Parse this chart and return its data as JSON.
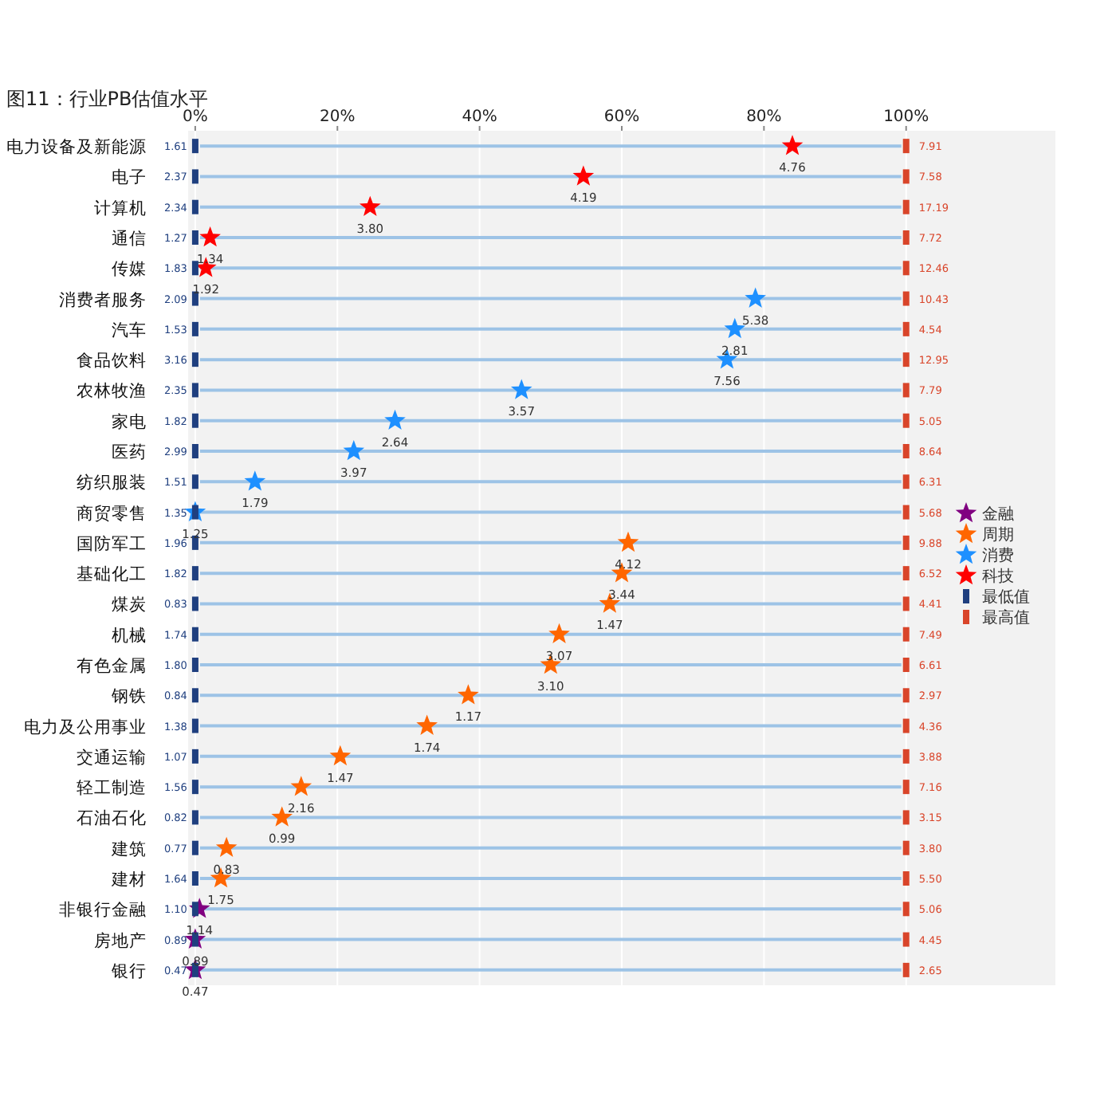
{
  "chart_data": {
    "type": "scatter",
    "orientation": "horizontal",
    "title": "图11：行业PB估值水平",
    "categories": [
      "电力设备及新能源",
      "电子",
      "计算机",
      "通信",
      "传媒",
      "消费者服务",
      "汽车",
      "食品饮料",
      "农林牧渔",
      "家电",
      "医药",
      "纺织服装",
      "商贸零售",
      "国防军工",
      "基础化工",
      "煤炭",
      "机械",
      "有色金属",
      "钢铁",
      "电力及公用事业",
      "交通运输",
      "轻工制造",
      "石油石化",
      "建筑",
      "建材",
      "非银行金融",
      "房地产",
      "银行"
    ],
    "xlim": [
      -1,
      121
    ],
    "xticks": [
      {
        "value": 0,
        "label": "0%"
      },
      {
        "value": 20,
        "label": "20%"
      },
      {
        "value": 40,
        "label": "40%"
      },
      {
        "value": 60,
        "label": "60%"
      },
      {
        "value": 80,
        "label": "80%"
      },
      {
        "value": 100,
        "label": "100%"
      }
    ],
    "grid": true,
    "legend": "right",
    "marker": "star",
    "series": [
      {
        "name": "金融",
        "color": "#800080",
        "values": [
          null,
          null,
          null,
          null,
          null,
          null,
          null,
          null,
          null,
          null,
          null,
          null,
          null,
          null,
          null,
          null,
          null,
          null,
          null,
          null,
          null,
          null,
          null,
          null,
          null,
          0.6,
          0,
          0
        ]
      },
      {
        "name": "周期",
        "color": "#ff6600",
        "values": [
          null,
          null,
          null,
          null,
          null,
          null,
          null,
          null,
          null,
          null,
          null,
          null,
          null,
          60.9,
          60.0,
          58.3,
          51.2,
          50.0,
          38.4,
          32.6,
          20.4,
          14.9,
          12.2,
          4.4,
          3.6,
          null,
          null,
          null
        ]
      },
      {
        "name": "消费",
        "color": "#1e90ff",
        "values": [
          null,
          null,
          null,
          null,
          null,
          78.8,
          75.9,
          74.8,
          45.9,
          28.1,
          22.3,
          8.4,
          0,
          null,
          null,
          null,
          null,
          null,
          null,
          null,
          null,
          null,
          null,
          null,
          null,
          null,
          null,
          null
        ]
      },
      {
        "name": "科技",
        "color": "#ff0000",
        "values": [
          84.0,
          54.6,
          24.6,
          2.1,
          1.5,
          null,
          null,
          null,
          null,
          null,
          null,
          null,
          null,
          null,
          null,
          null,
          null,
          null,
          null,
          null,
          null,
          null,
          null,
          null,
          null,
          null,
          null,
          null
        ]
      },
      {
        "name": "最低值",
        "color": "#1f3f7f",
        "marker": "square",
        "values": [
          0,
          0,
          0,
          0,
          0,
          0,
          0,
          0,
          0,
          0,
          0,
          0,
          0,
          0,
          0,
          0,
          0,
          0,
          0,
          0,
          0,
          0,
          0,
          0,
          0,
          0,
          0,
          0
        ]
      },
      {
        "name": "最高值",
        "color": "#d9452a",
        "marker": "square",
        "values": [
          100,
          100,
          100,
          100,
          100,
          100,
          100,
          100,
          100,
          100,
          100,
          100,
          100,
          100,
          100,
          100,
          100,
          100,
          100,
          100,
          100,
          100,
          100,
          100,
          100,
          100,
          100,
          100
        ]
      }
    ],
    "annotations": [
      {
        "text": "4.76",
        "x": 84.0,
        "y": "电力设备及新能源"
      },
      {
        "text": "4.19",
        "x": 54.6,
        "y": "电子"
      },
      {
        "text": "3.80",
        "x": 24.6,
        "y": "计算机"
      },
      {
        "text": "1.34",
        "x": 2.1,
        "y": "通信"
      },
      {
        "text": "1.92",
        "x": 1.5,
        "y": "传媒"
      },
      {
        "text": "5.38",
        "x": 78.8,
        "y": "消费者服务"
      },
      {
        "text": "2.81",
        "x": 75.9,
        "y": "汽车"
      },
      {
        "text": "7.56",
        "x": 74.8,
        "y": "食品饮料"
      },
      {
        "text": "3.57",
        "x": 45.9,
        "y": "农林牧渔"
      },
      {
        "text": "2.64",
        "x": 28.1,
        "y": "家电"
      },
      {
        "text": "3.97",
        "x": 22.3,
        "y": "医药"
      },
      {
        "text": "1.79",
        "x": 8.4,
        "y": "纺织服装"
      },
      {
        "text": "1.25",
        "x": 0,
        "y": "商贸零售"
      },
      {
        "text": "4.12",
        "x": 60.9,
        "y": "国防军工"
      },
      {
        "text": "3.44",
        "x": 60.0,
        "y": "基础化工"
      },
      {
        "text": "1.47",
        "x": 58.3,
        "y": "煤炭"
      },
      {
        "text": "3.07",
        "x": 51.2,
        "y": "机械"
      },
      {
        "text": "3.10",
        "x": 50.0,
        "y": "有色金属"
      },
      {
        "text": "1.17",
        "x": 38.4,
        "y": "钢铁"
      },
      {
        "text": "1.74",
        "x": 32.6,
        "y": "电力及公用事业"
      },
      {
        "text": "1.47",
        "x": 20.4,
        "y": "交通运输"
      },
      {
        "text": "2.16",
        "x": 14.9,
        "y": "轻工制造"
      },
      {
        "text": "0.99",
        "x": 12.2,
        "y": "石油石化"
      },
      {
        "text": "0.83",
        "x": 4.4,
        "y": "建筑"
      },
      {
        "text": "1.75",
        "x": 3.6,
        "y": "建材"
      },
      {
        "text": "1.14",
        "x": 0.6,
        "y": "非银行金融"
      },
      {
        "text": "0.89",
        "x": 0,
        "y": "房地产"
      },
      {
        "text": "0.47",
        "x": 0,
        "y": "银行"
      },
      {
        "text": "1.61",
        "x": 0,
        "y": "电力设备及新能源"
      },
      {
        "text": "2.37",
        "x": 0,
        "y": "电子"
      },
      {
        "text": "2.34",
        "x": 0,
        "y": "计算机"
      },
      {
        "text": "1.27",
        "x": 0,
        "y": "通信"
      },
      {
        "text": "1.83",
        "x": 0,
        "y": "传媒"
      },
      {
        "text": "2.09",
        "x": 0,
        "y": "消费者服务"
      },
      {
        "text": "1.53",
        "x": 0,
        "y": "汽车"
      },
      {
        "text": "3.16",
        "x": 0,
        "y": "食品饮料"
      },
      {
        "text": "2.35",
        "x": 0,
        "y": "农林牧渔"
      },
      {
        "text": "1.82",
        "x": 0,
        "y": "家电"
      },
      {
        "text": "2.99",
        "x": 0,
        "y": "医药"
      },
      {
        "text": "1.51",
        "x": 0,
        "y": "纺织服装"
      },
      {
        "text": "1.35",
        "x": 0,
        "y": "商贸零售"
      },
      {
        "text": "1.96",
        "x": 0,
        "y": "国防军工"
      },
      {
        "text": "1.82",
        "x": 0,
        "y": "基础化工"
      },
      {
        "text": "0.83",
        "x": 0,
        "y": "煤炭"
      },
      {
        "text": "1.74",
        "x": 0,
        "y": "机械"
      },
      {
        "text": "1.80",
        "x": 0,
        "y": "有色金属"
      },
      {
        "text": "0.84",
        "x": 0,
        "y": "钢铁"
      },
      {
        "text": "1.38",
        "x": 0,
        "y": "电力及公用事业"
      },
      {
        "text": "1.07",
        "x": 0,
        "y": "交通运输"
      },
      {
        "text": "1.56",
        "x": 0,
        "y": "轻工制造"
      },
      {
        "text": "0.82",
        "x": 0,
        "y": "石油石化"
      },
      {
        "text": "0.77",
        "x": 0,
        "y": "建筑"
      },
      {
        "text": "1.64",
        "x": 0,
        "y": "建材"
      },
      {
        "text": "1.10",
        "x": 0,
        "y": "非银行金融"
      },
      {
        "text": "0.89",
        "x": 0,
        "y": "房地产"
      },
      {
        "text": "0.47",
        "x": 0,
        "y": "银行"
      },
      {
        "text": "7.91",
        "x": 100,
        "y": "电力设备及新能源"
      },
      {
        "text": "7.58",
        "x": 100,
        "y": "电子"
      },
      {
        "text": "17.19",
        "x": 100,
        "y": "计算机"
      },
      {
        "text": "7.72",
        "x": 100,
        "y": "通信"
      },
      {
        "text": "12.46",
        "x": 100,
        "y": "传媒"
      },
      {
        "text": "10.43",
        "x": 100,
        "y": "消费者服务"
      },
      {
        "text": "4.54",
        "x": 100,
        "y": "汽车"
      },
      {
        "text": "12.95",
        "x": 100,
        "y": "食品饮料"
      },
      {
        "text": "7.79",
        "x": 100,
        "y": "农林牧渔"
      },
      {
        "text": "5.05",
        "x": 100,
        "y": "家电"
      },
      {
        "text": "8.64",
        "x": 100,
        "y": "医药"
      },
      {
        "text": "6.31",
        "x": 100,
        "y": "纺织服装"
      },
      {
        "text": "5.68",
        "x": 100,
        "y": "商贸零售"
      },
      {
        "text": "9.88",
        "x": 100,
        "y": "国防军工"
      },
      {
        "text": "6.52",
        "x": 100,
        "y": "基础化工"
      },
      {
        "text": "4.41",
        "x": 100,
        "y": "煤炭"
      },
      {
        "text": "7.49",
        "x": 100,
        "y": "机械"
      },
      {
        "text": "6.61",
        "x": 100,
        "y": "有色金属"
      },
      {
        "text": "2.97",
        "x": 100,
        "y": "钢铁"
      },
      {
        "text": "4.36",
        "x": 100,
        "y": "电力及公用事业"
      },
      {
        "text": "3.88",
        "x": 100,
        "y": "交通运输"
      },
      {
        "text": "7.16",
        "x": 100,
        "y": "轻工制造"
      },
      {
        "text": "3.15",
        "x": 100,
        "y": "石油石化"
      },
      {
        "text": "3.80",
        "x": 100,
        "y": "建筑"
      },
      {
        "text": "5.50",
        "x": 100,
        "y": "建材"
      },
      {
        "text": "5.06",
        "x": 100,
        "y": "非银行金融"
      },
      {
        "text": "4.45",
        "x": 100,
        "y": "房地产"
      },
      {
        "text": "2.65",
        "x": 100,
        "y": "银行"
      }
    ]
  }
}
